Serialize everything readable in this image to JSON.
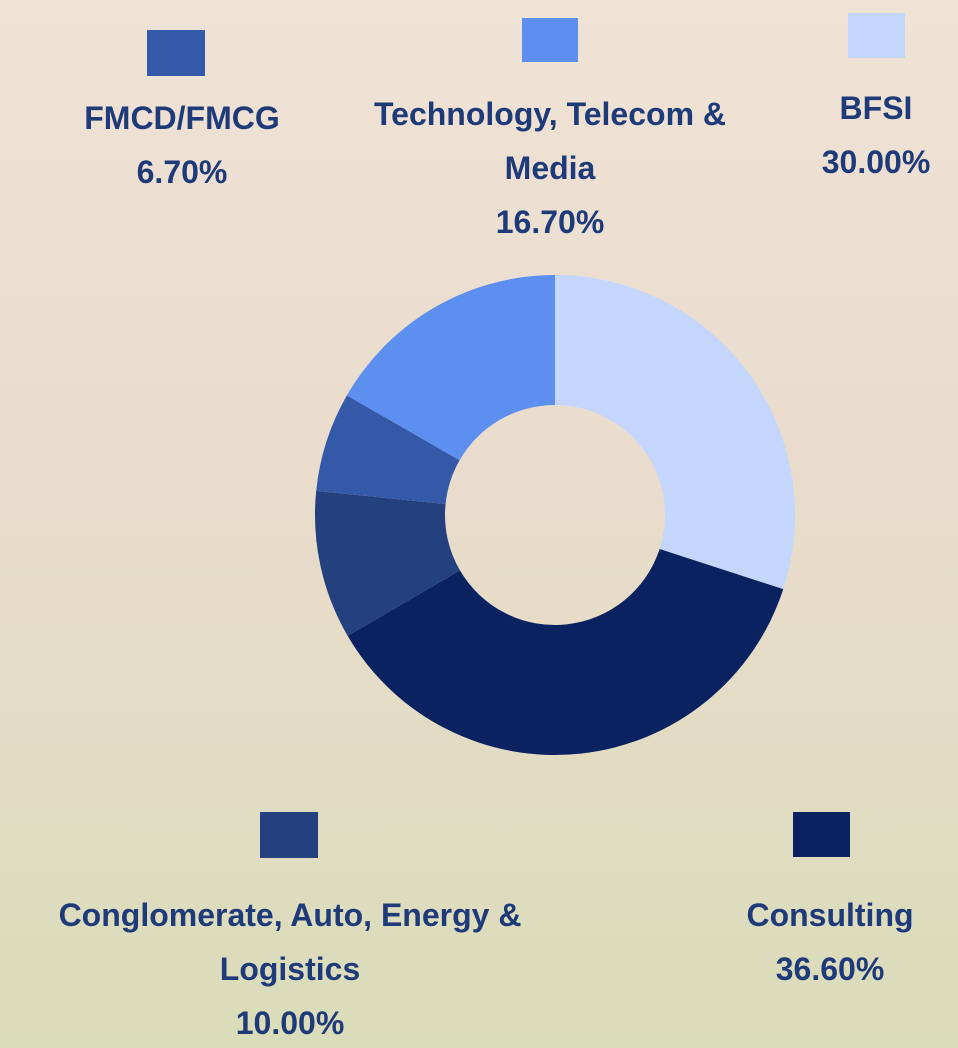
{
  "chart_data": {
    "type": "donut",
    "categories": [
      "BFSI",
      "Consulting",
      "Conglomerate, Auto, Energy & Logistics",
      "FMCD/FMCG",
      "Technology, Telecom & Media"
    ],
    "values": [
      30.0,
      36.6,
      10.0,
      6.7,
      16.7
    ],
    "value_labels": [
      "30.00%",
      "36.60%",
      "10.00%",
      "6.70%",
      "16.70%"
    ],
    "colors": [
      "#c4d6fb",
      "#0b2260",
      "#25407e",
      "#3359a8",
      "#5d8ff0"
    ]
  }
}
